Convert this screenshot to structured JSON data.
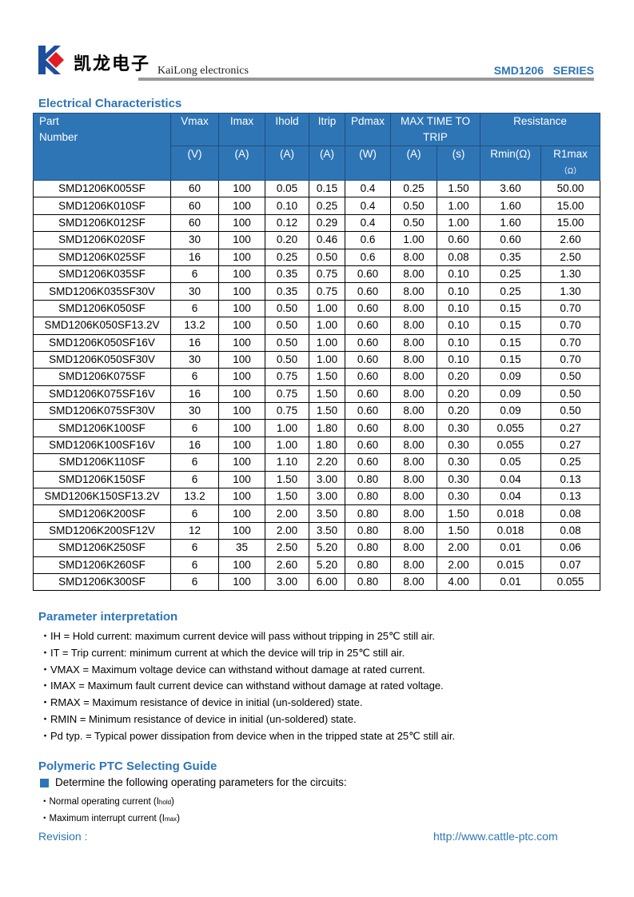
{
  "header": {
    "logo_text": "凯龙电子",
    "brand": "KaiLong electronics",
    "series": "SMD1206   SERIES",
    "colors": {
      "accent": "#2e75b6",
      "logo_blue": "#1f4e9c",
      "logo_red": "#e31b23"
    }
  },
  "section1": {
    "title": "Electrical Characteristics"
  },
  "table": {
    "h": {
      "part": "Part",
      "number": "Number",
      "vmax": "Vmax",
      "imax": "Imax",
      "ihold": "Ihold",
      "itrip": "Itrip",
      "pdmax": "Pdmax",
      "ttt": "MAX TIME TO",
      "trip": "TRIP",
      "res": "Resistance",
      "u_v": "(V)",
      "u_a1": "(A)",
      "u_a2": "(A)",
      "u_a3": "(A)",
      "u_w": "(W)",
      "u_a4": "(A)",
      "u_s": "(s)",
      "rmin": "Rmin(Ω)",
      "r1max": "R1max",
      "r1unit": "（Ω）"
    },
    "rows": [
      [
        "SMD1206K005SF",
        "60",
        "100",
        "0.05",
        "0.15",
        "0.4",
        "0.25",
        "1.50",
        "3.60",
        "50.00"
      ],
      [
        "SMD1206K010SF",
        "60",
        "100",
        "0.10",
        "0.25",
        "0.4",
        "0.50",
        "1.00",
        "1.60",
        "15.00"
      ],
      [
        "SMD1206K012SF",
        "60",
        "100",
        "0.12",
        "0.29",
        "0.4",
        "0.50",
        "1.00",
        "1.60",
        "15.00"
      ],
      [
        "SMD1206K020SF",
        "30",
        "100",
        "0.20",
        "0.46",
        "0.6",
        "1.00",
        "0.60",
        "0.60",
        "2.60"
      ],
      [
        "SMD1206K025SF",
        "16",
        "100",
        "0.25",
        "0.50",
        "0.6",
        "8.00",
        "0.08",
        "0.35",
        "2.50"
      ],
      [
        "SMD1206K035SF",
        "6",
        "100",
        "0.35",
        "0.75",
        "0.60",
        "8.00",
        "0.10",
        "0.25",
        "1.30"
      ],
      [
        "SMD1206K035SF30V",
        "30",
        "100",
        "0.35",
        "0.75",
        "0.60",
        "8.00",
        "0.10",
        "0.25",
        "1.30"
      ],
      [
        "SMD1206K050SF",
        "6",
        "100",
        "0.50",
        "1.00",
        "0.60",
        "8.00",
        "0.10",
        "0.15",
        "0.70"
      ],
      [
        "SMD1206K050SF13.2V",
        "13.2",
        "100",
        "0.50",
        "1.00",
        "0.60",
        "8.00",
        "0.10",
        "0.15",
        "0.70"
      ],
      [
        "SMD1206K050SF16V",
        "16",
        "100",
        "0.50",
        "1.00",
        "0.60",
        "8.00",
        "0.10",
        "0.15",
        "0.70"
      ],
      [
        "SMD1206K050SF30V",
        "30",
        "100",
        "0.50",
        "1.00",
        "0.60",
        "8.00",
        "0.10",
        "0.15",
        "0.70"
      ],
      [
        "SMD1206K075SF",
        "6",
        "100",
        "0.75",
        "1.50",
        "0.60",
        "8.00",
        "0.20",
        "0.09",
        "0.50"
      ],
      [
        "SMD1206K075SF16V",
        "16",
        "100",
        "0.75",
        "1.50",
        "0.60",
        "8.00",
        "0.20",
        "0.09",
        "0.50"
      ],
      [
        "SMD1206K075SF30V",
        "30",
        "100",
        "0.75",
        "1.50",
        "0.60",
        "8.00",
        "0.20",
        "0.09",
        "0.50"
      ],
      [
        "SMD1206K100SF",
        "6",
        "100",
        "1.00",
        "1.80",
        "0.60",
        "8.00",
        "0.30",
        "0.055",
        "0.27"
      ],
      [
        "SMD1206K100SF16V",
        "16",
        "100",
        "1.00",
        "1.80",
        "0.60",
        "8.00",
        "0.30",
        "0.055",
        "0.27"
      ],
      [
        "SMD1206K110SF",
        "6",
        "100",
        "1.10",
        "2.20",
        "0.60",
        "8.00",
        "0.30",
        "0.05",
        "0.25"
      ],
      [
        "SMD1206K150SF",
        "6",
        "100",
        "1.50",
        "3.00",
        "0.80",
        "8.00",
        "0.30",
        "0.04",
        "0.13"
      ],
      [
        "SMD1206K150SF13.2V",
        "13.2",
        "100",
        "1.50",
        "3.00",
        "0.80",
        "8.00",
        "0.30",
        "0.04",
        "0.13"
      ],
      [
        "SMD1206K200SF",
        "6",
        "100",
        "2.00",
        "3.50",
        "0.80",
        "8.00",
        "1.50",
        "0.018",
        "0.08"
      ],
      [
        "SMD1206K200SF12V",
        "12",
        "100",
        "2.00",
        "3.50",
        "0.80",
        "8.00",
        "1.50",
        "0.018",
        "0.08"
      ],
      [
        "SMD1206K250SF",
        "6",
        "35",
        "2.50",
        "5.20",
        "0.80",
        "8.00",
        "2.00",
        "0.01",
        "0.06"
      ],
      [
        "SMD1206K260SF",
        "6",
        "100",
        "2.60",
        "5.20",
        "0.80",
        "8.00",
        "2.00",
        "0.015",
        "0.07"
      ],
      [
        "SMD1206K300SF",
        "6",
        "100",
        "3.00",
        "6.00",
        "0.80",
        "8.00",
        "4.00",
        "0.01",
        "0.055"
      ]
    ]
  },
  "section2": {
    "title": "Parameter interpretation",
    "items": [
      "・IH = Hold current: maximum current device will pass without tripping in 25℃  still air.",
      "・IT = Trip current: minimum current at which the device will trip in 25℃  still air.",
      "・VMAX = Maximum voltage device can withstand without damage at rated current.",
      "・IMAX = Maximum fault current device can withstand without damage at rated voltage.",
      "・RMAX = Maximum resistance of device in initial (un-soldered) state.",
      "・RMIN = Minimum resistance of device in initial (un-soldered) state.",
      "・Pd typ. = Typical power dissipation from device when in the tripped state at 25℃  still air."
    ]
  },
  "section3": {
    "title": "Polymeric PTC Selecting Guide",
    "lead": "Determine the following operating parameters for the circuits:",
    "b1": "・Normal operating current (I",
    "b1sub": "hold",
    "b2": "・Maximum interrupt current (I",
    "b2sub": "max",
    "close": ")"
  },
  "footer": {
    "revision": "Revision :",
    "url": "http://www.cattle-ptc.com"
  }
}
